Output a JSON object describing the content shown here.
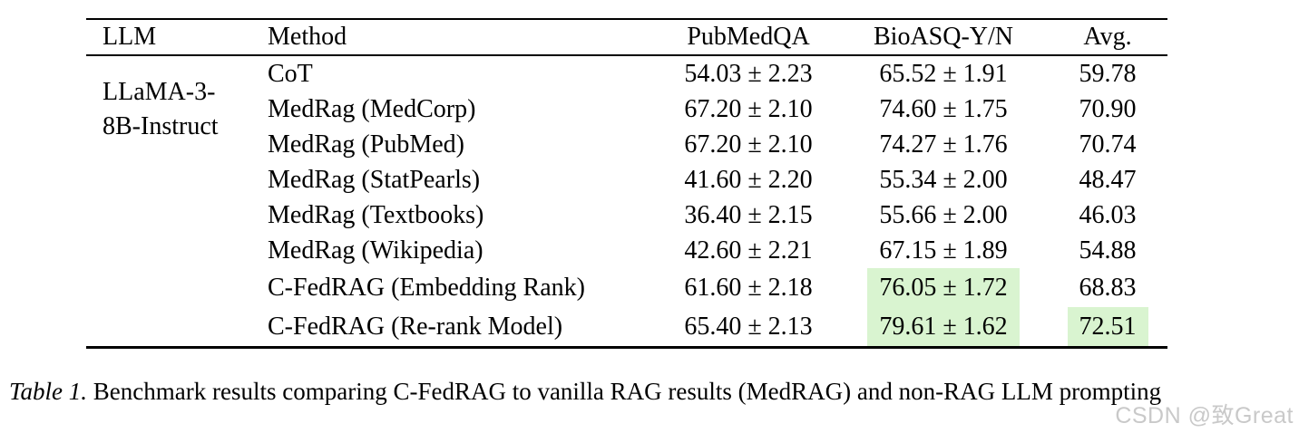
{
  "table": {
    "columns": [
      "LLM",
      "Method",
      "PubMedQA",
      "BioASQ-Y/N",
      "Avg."
    ],
    "llm_group": "LLaMA-3-8B-Instruct",
    "rows": [
      {
        "method": "CoT",
        "pubmedqa": "54.03 ± 2.23",
        "bioasq": "65.52 ± 1.91",
        "avg": "59.78",
        "hl_bioasq": false,
        "hl_avg": false,
        "tall": false
      },
      {
        "method": "MedRag (MedCorp)",
        "pubmedqa": "67.20 ± 2.10",
        "bioasq": "74.60 ± 1.75",
        "avg": "70.90",
        "hl_bioasq": false,
        "hl_avg": false,
        "tall": false
      },
      {
        "method": "MedRag (PubMed)",
        "pubmedqa": "67.20 ± 2.10",
        "bioasq": "74.27 ± 1.76",
        "avg": "70.74",
        "hl_bioasq": false,
        "hl_avg": false,
        "tall": false
      },
      {
        "method": "MedRag (StatPearls)",
        "pubmedqa": "41.60 ± 2.20",
        "bioasq": "55.34 ± 2.00",
        "avg": "48.47",
        "hl_bioasq": false,
        "hl_avg": false,
        "tall": false
      },
      {
        "method": "MedRag (Textbooks)",
        "pubmedqa": "36.40 ± 2.15",
        "bioasq": "55.66 ± 2.00",
        "avg": "46.03",
        "hl_bioasq": false,
        "hl_avg": false,
        "tall": false
      },
      {
        "method": "MedRag (Wikipedia)",
        "pubmedqa": "42.60 ± 2.21",
        "bioasq": "67.15 ± 1.89",
        "avg": "54.88",
        "hl_bioasq": false,
        "hl_avg": false,
        "tall": false
      },
      {
        "method": "C-FedRAG (Embedding Rank)",
        "pubmedqa": "61.60 ± 2.18",
        "bioasq": "76.05 ± 1.72",
        "avg": "68.83",
        "hl_bioasq": true,
        "hl_avg": false,
        "tall": true
      },
      {
        "method": "C-FedRAG (Re-rank Model)",
        "pubmedqa": "65.40 ± 2.13",
        "bioasq": "79.61 ± 1.62",
        "avg": "72.51",
        "hl_bioasq": true,
        "hl_avg": true,
        "tall": true
      }
    ]
  },
  "chart_data": {
    "type": "table",
    "title": "Table 1. Benchmark results comparing C-FedRAG to vanilla RAG results (MedRAG) and non-RAG LLM prompting",
    "columns": [
      "LLM",
      "Method",
      "PubMedQA",
      "BioASQ-Y/N",
      "Avg."
    ],
    "llm": "LLaMA-3-8B-Instruct",
    "categories": [
      "CoT",
      "MedRag (MedCorp)",
      "MedRag (PubMed)",
      "MedRag (StatPearls)",
      "MedRag (Textbooks)",
      "MedRag (Wikipedia)",
      "C-FedRAG (Embedding Rank)",
      "C-FedRAG (Re-rank Model)"
    ],
    "series": [
      {
        "name": "PubMedQA",
        "values": [
          54.03,
          67.2,
          67.2,
          41.6,
          36.4,
          42.6,
          61.6,
          65.4
        ],
        "stderr": [
          2.23,
          2.1,
          2.1,
          2.2,
          2.15,
          2.21,
          2.18,
          2.13
        ]
      },
      {
        "name": "BioASQ-Y/N",
        "values": [
          65.52,
          74.6,
          74.27,
          55.34,
          55.66,
          67.15,
          76.05,
          79.61
        ],
        "stderr": [
          1.91,
          1.75,
          1.76,
          2.0,
          2.0,
          1.89,
          1.72,
          1.62
        ]
      },
      {
        "name": "Avg.",
        "values": [
          59.78,
          70.9,
          70.74,
          48.47,
          46.03,
          54.88,
          68.83,
          72.51
        ]
      }
    ],
    "highlighted_cells": [
      "C-FedRAG (Embedding Rank)/BioASQ-Y/N",
      "C-FedRAG (Re-rank Model)/BioASQ-Y/N",
      "C-FedRAG (Re-rank Model)/Avg."
    ]
  },
  "caption": {
    "label": "Table 1.",
    "text": " Benchmark results comparing C-FedRAG to vanilla RAG results (MedRAG) and non-RAG LLM prompting"
  },
  "watermark": "CSDN @致Great",
  "colors": {
    "highlight": "#d9f4d0",
    "rule": "#000000",
    "watermark": "#c9c9c9"
  }
}
